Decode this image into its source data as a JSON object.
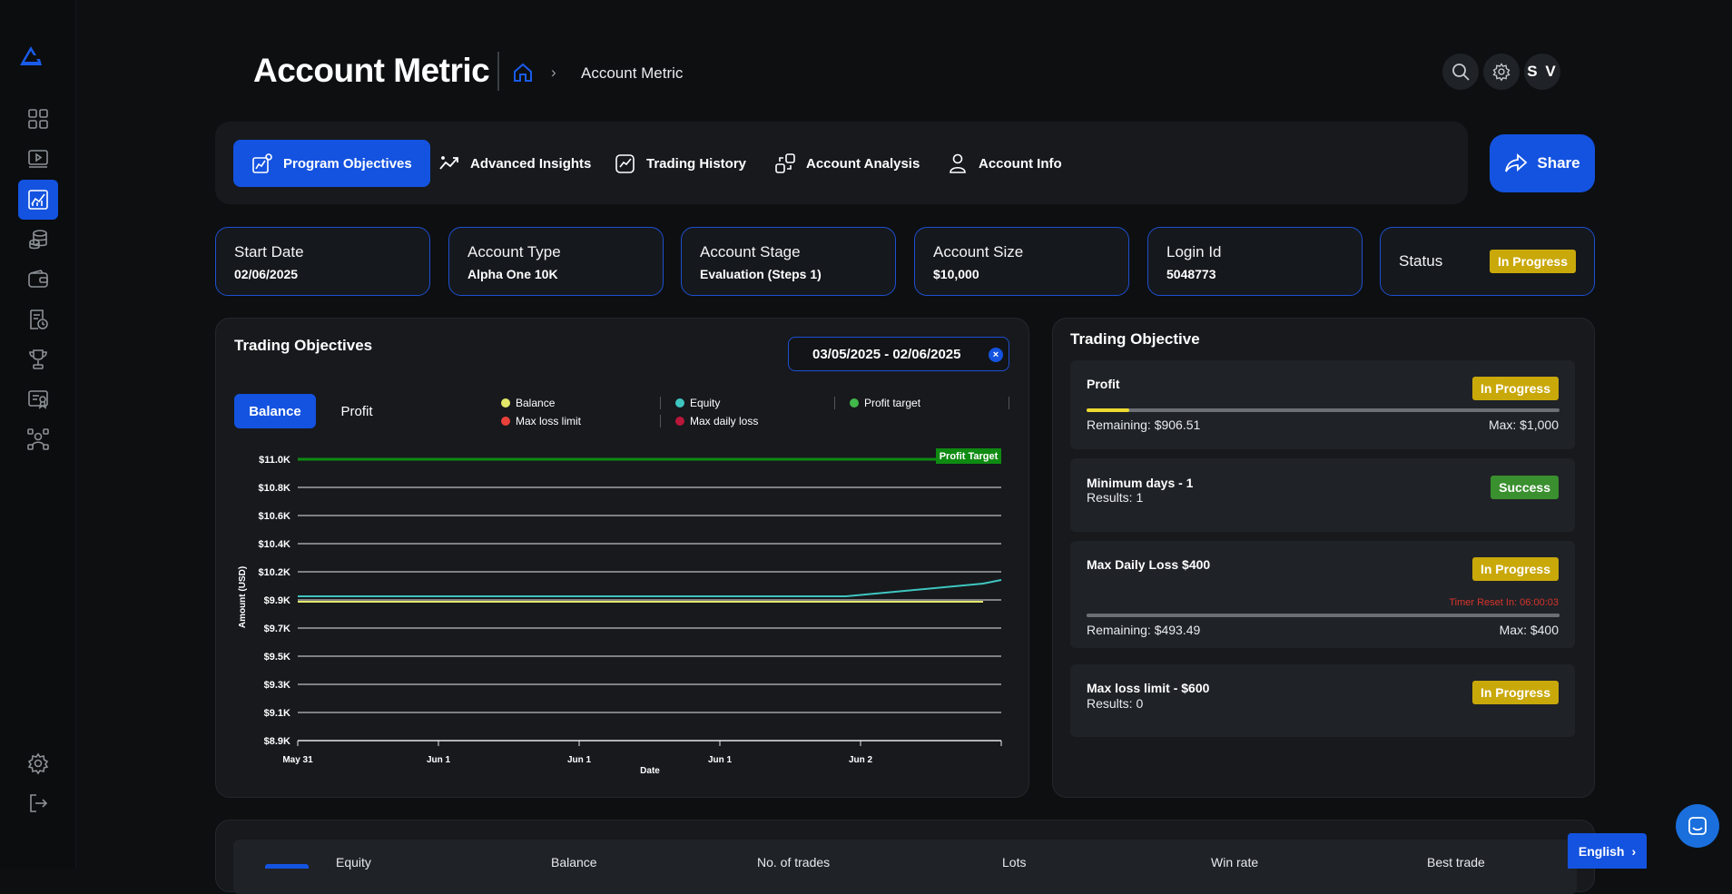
{
  "header": {
    "title": "Account Metric",
    "breadcrumb": "Account Metric",
    "avatar_initials": "S V"
  },
  "tabs": [
    {
      "label": "Program Objectives",
      "icon": "program-icon",
      "active": true
    },
    {
      "label": "Advanced Insights",
      "icon": "insights-icon",
      "active": false
    },
    {
      "label": "Trading History",
      "icon": "history-icon",
      "active": false
    },
    {
      "label": "Account Analysis",
      "icon": "analysis-icon",
      "active": false
    },
    {
      "label": "Account Info",
      "icon": "user-icon",
      "active": false
    }
  ],
  "share_label": "Share",
  "info_cards": [
    {
      "label": "Start Date",
      "value": "02/06/2025"
    },
    {
      "label": "Account Type",
      "value": "Alpha One 10K"
    },
    {
      "label": "Account Stage",
      "value": "Evaluation (Steps 1)"
    },
    {
      "label": "Account Size",
      "value": "$10,000"
    },
    {
      "label": "Login Id",
      "value": "5048773"
    }
  ],
  "status_card": {
    "label": "Status",
    "badge": "In Progress"
  },
  "trading_objectives": {
    "title": "Trading Objectives",
    "date_range": "03/05/2025 - 02/06/2025",
    "clear_icon": "×",
    "toggle": {
      "balance": "Balance",
      "profit": "Profit"
    },
    "legend": {
      "balance": "Balance",
      "equity": "Equity",
      "profit_target": "Profit target",
      "max_loss_limit": "Max loss limit",
      "max_daily_loss": "Max daily loss"
    }
  },
  "chart_data": {
    "type": "line",
    "xlabel": "Date",
    "ylabel": "Amount (USD)",
    "y_ticks": [
      "$11.0K",
      "$10.8K",
      "$10.6K",
      "$10.4K",
      "$10.2K",
      "$9.9K",
      "$9.7K",
      "$9.5K",
      "$9.3K",
      "$9.1K",
      "$8.9K"
    ],
    "x_ticks": [
      "May 31",
      "Jun 1",
      "Jun 1",
      "Jun 1",
      "Jun 2"
    ],
    "ylim": [
      8900,
      11000
    ],
    "profit_target_value": 11000,
    "profit_target_label": "Profit Target",
    "series": [
      {
        "name": "Balance",
        "color": "#e3e86a",
        "values": [
          9980,
          9980,
          9980,
          9980,
          9980,
          9980
        ]
      },
      {
        "name": "Equity",
        "color": "#3fc5c0",
        "values": [
          10000,
          10000,
          10000,
          10000,
          10000,
          10100
        ]
      }
    ],
    "grid": true,
    "legend_position": "top-right"
  },
  "trading_objective": {
    "title": "Trading Objective",
    "items": [
      {
        "title": "Profit",
        "badge": "In Progress",
        "badge_type": "progress",
        "remaining": "Remaining: $906.51",
        "max": "Max: $1,000",
        "progress": 0.09
      },
      {
        "title": "Minimum days - 1",
        "badge": "Success",
        "badge_type": "success",
        "results": "Results: 1"
      },
      {
        "title": "Max Daily Loss $400",
        "badge": "In Progress",
        "badge_type": "progress",
        "timer": "Timer Reset In: 06:00:03",
        "remaining": "Remaining: $493.49",
        "max": "Max: $400",
        "progress": 1.0
      },
      {
        "title": "Max loss limit - $600",
        "badge": "In Progress",
        "badge_type": "progress",
        "results": "Results: 0"
      }
    ]
  },
  "bottom_columns": [
    "Equity",
    "Balance",
    "No. of trades",
    "Lots",
    "Win rate",
    "Best trade"
  ],
  "language": "English",
  "colors": {
    "accent": "#1453e0",
    "progress": "#c9a80a",
    "success": "#3a8f2f",
    "profit_target_line": "#0f8a12",
    "timer": "#d9342b"
  }
}
